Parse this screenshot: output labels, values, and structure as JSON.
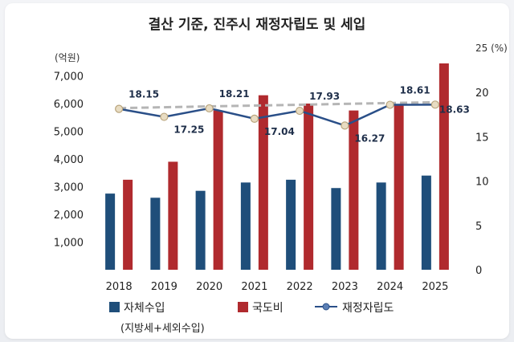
{
  "chart_data": {
    "type": "bar",
    "title": "결산 기준, 진주시 재정자립도 및 세입",
    "y_left_unit": "(억원)",
    "y_right_unit": "25 (%)",
    "categories": [
      "2018",
      "2019",
      "2020",
      "2021",
      "2022",
      "2023",
      "2024",
      "2025"
    ],
    "y_left_ticks": [
      "1,000",
      "2,000",
      "3,000",
      "4,000",
      "5,000",
      "6,000",
      "7,000"
    ],
    "y_right_ticks": [
      "0",
      "5",
      "10",
      "15",
      "20"
    ],
    "ylim_left": [
      0,
      8000
    ],
    "ylim_right": [
      0,
      25
    ],
    "series": [
      {
        "name": "자체수입",
        "axis": "left",
        "kind": "bar",
        "color": "#1f4e7a",
        "values": [
          2750,
          2600,
          2850,
          3150,
          3250,
          2950,
          3150,
          3400
        ]
      },
      {
        "name": "국도비",
        "axis": "left",
        "kind": "bar",
        "color": "#b02a2e",
        "values": [
          3250,
          3900,
          5750,
          6300,
          6000,
          5750,
          5950,
          7450
        ]
      },
      {
        "name": "재정자립도",
        "axis": "right",
        "kind": "line",
        "color": "#2a4f88",
        "values": [
          18.15,
          17.25,
          18.21,
          17.04,
          17.93,
          16.27,
          18.61,
          18.63
        ],
        "labels": [
          "18.15",
          "17.25",
          "18.21",
          "17.04",
          "17.93",
          "16.27",
          "18.61",
          "18.63"
        ]
      }
    ],
    "legend": {
      "items": [
        "자체수입",
        "국도비",
        "재정자립도"
      ],
      "note": "(지방세+세외수입)",
      "placement": "bottom"
    },
    "grid": false
  }
}
